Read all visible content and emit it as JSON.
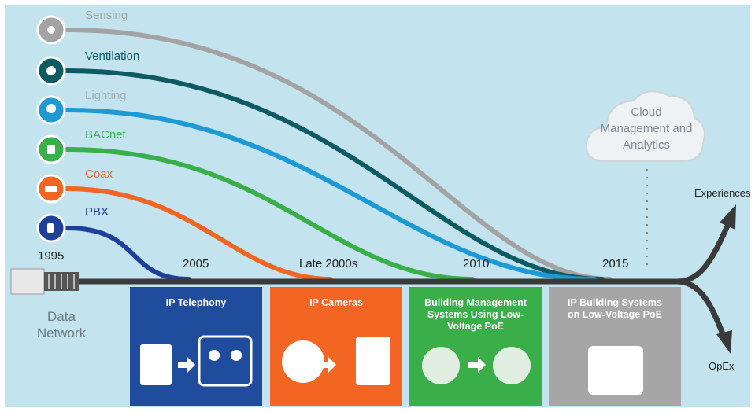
{
  "curves": [
    {
      "label": "Sensing"
    },
    {
      "label": "Ventilation"
    },
    {
      "label": "Lighting"
    },
    {
      "label": "BACnet"
    },
    {
      "label": "Coax"
    },
    {
      "label": "PBX"
    }
  ],
  "years": [
    "1995",
    "2005",
    "Late 2000s",
    "2010",
    "2015"
  ],
  "source": "Data Network",
  "cloud": "Cloud Management and Analytics",
  "outcomes": [
    "Experiences",
    "OpEx"
  ],
  "stages": [
    "IP Telephony",
    "IP Cameras",
    "Building Management Systems Using Low-Voltage PoE",
    "IP Building Systems on Low-Voltage PoE"
  ]
}
